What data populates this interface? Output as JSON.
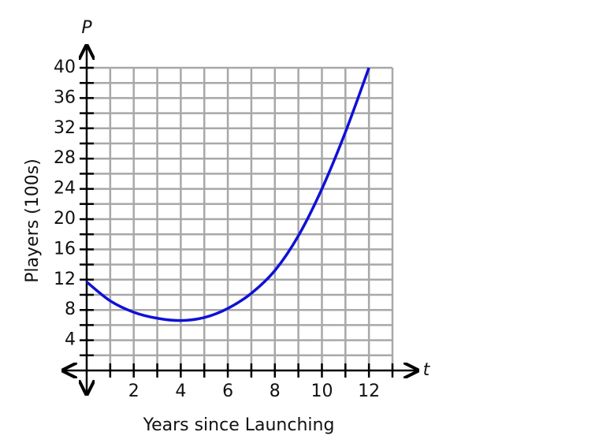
{
  "chart_data": {
    "type": "line",
    "x_label": "t",
    "y_label": "P",
    "y_title": "Players (100s)",
    "x_title": "Years since Launching",
    "x": [
      0,
      1,
      2,
      3,
      4,
      5,
      6,
      7,
      8,
      9,
      10,
      11,
      12
    ],
    "series": [
      {
        "name": "P",
        "color": "#1010d8",
        "values": [
          11.7,
          9.2,
          7.7,
          6.9,
          6.6,
          7.0,
          8.2,
          10.2,
          13.2,
          17.8,
          24,
          31.5,
          40
        ]
      }
    ],
    "xlim": [
      0,
      13
    ],
    "ylim": [
      0,
      40
    ],
    "xticks": [
      2,
      4,
      6,
      8,
      10,
      12
    ],
    "x_minor_ticks": [
      1,
      3,
      5,
      7,
      9,
      11,
      13
    ],
    "yticks": [
      4,
      8,
      12,
      16,
      20,
      24,
      28,
      32,
      36,
      40
    ],
    "y_minor_ticks": [
      2,
      6,
      10,
      14,
      18,
      22,
      26,
      30,
      34,
      38
    ],
    "grid": true
  }
}
